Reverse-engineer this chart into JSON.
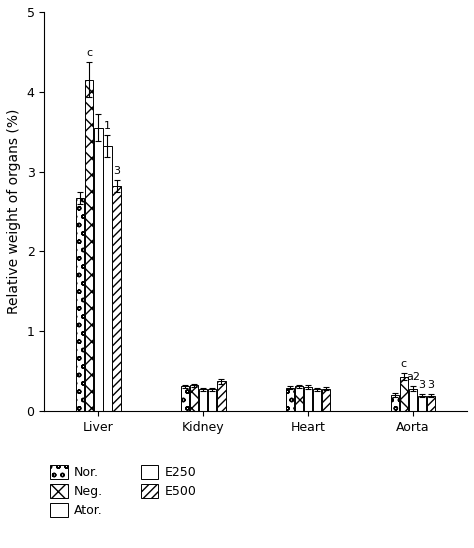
{
  "categories": [
    "Liver",
    "Kidney",
    "Heart",
    "Aorta"
  ],
  "groups": [
    "Nor.",
    "Neg.",
    "Ator.",
    "E250",
    "E500"
  ],
  "values": {
    "Liver": [
      2.67,
      4.15,
      3.55,
      3.32,
      2.82
    ],
    "Kidney": [
      0.31,
      0.32,
      0.27,
      0.27,
      0.37
    ],
    "Heart": [
      0.29,
      0.31,
      0.3,
      0.27,
      0.28
    ],
    "Aorta": [
      0.2,
      0.43,
      0.28,
      0.19,
      0.19
    ]
  },
  "errors": {
    "Liver": [
      0.08,
      0.22,
      0.17,
      0.14,
      0.08
    ],
    "Kidney": [
      0.02,
      0.02,
      0.02,
      0.02,
      0.03
    ],
    "Heart": [
      0.02,
      0.02,
      0.02,
      0.02,
      0.02
    ],
    "Aorta": [
      0.02,
      0.04,
      0.03,
      0.02,
      0.02
    ]
  },
  "annotations": {
    "Liver": [
      "",
      "c",
      "",
      "1",
      "3"
    ],
    "Kidney": [
      "",
      "",
      "",
      "",
      ""
    ],
    "Heart": [
      "",
      "",
      "",
      "",
      ""
    ],
    "Aorta": [
      "",
      "c",
      "a2",
      "3",
      "3"
    ]
  },
  "ylabel": "Relative weight of organs (%)",
  "ylim": [
    0,
    5
  ],
  "yticks": [
    0,
    1,
    2,
    3,
    4,
    5
  ],
  "bar_width": 0.13,
  "background_color": "#ffffff",
  "edge_color": "#000000",
  "errorbar_color": "#000000",
  "annotation_fontsize": 8,
  "ylabel_fontsize": 10,
  "tick_fontsize": 9,
  "legend_fontsize": 9
}
